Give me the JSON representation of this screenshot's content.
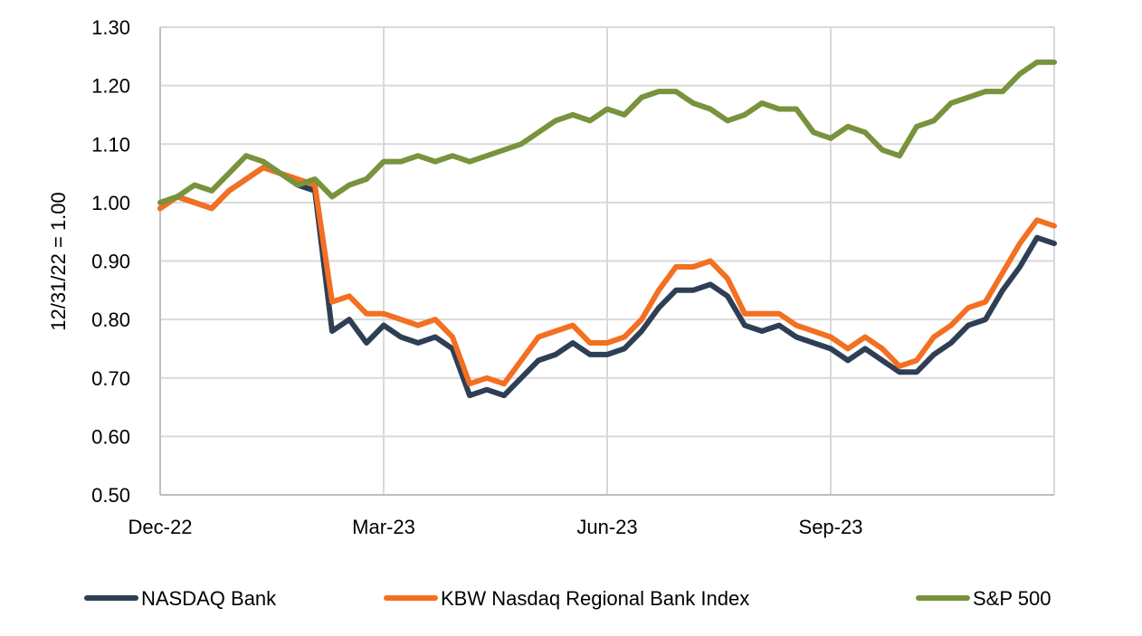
{
  "chart_data": {
    "type": "line",
    "title": "",
    "xlabel": "",
    "ylabel": "12/31/22 = 1.00",
    "ylim": [
      0.5,
      1.3
    ],
    "yticks": [
      "0.50",
      "0.60",
      "0.70",
      "0.80",
      "0.90",
      "1.00",
      "1.10",
      "1.20",
      "1.30"
    ],
    "xlim": [
      "2022-12-30",
      "2023-12-29"
    ],
    "xticks": [
      {
        "label": "Dec-22",
        "date": "2022-12-30"
      },
      {
        "label": "Mar-23",
        "date": "2023-03-31"
      },
      {
        "label": "Jun-23",
        "date": "2023-06-30"
      },
      {
        "label": "Sep-23",
        "date": "2023-09-29"
      }
    ],
    "grid": "vertical and horizontal",
    "legend_position": "bottom",
    "x": [
      "2022-12-30",
      "2023-01-06",
      "2023-01-13",
      "2023-01-20",
      "2023-01-27",
      "2023-02-03",
      "2023-02-10",
      "2023-02-17",
      "2023-02-24",
      "2023-03-03",
      "2023-03-10",
      "2023-03-17",
      "2023-03-24",
      "2023-03-31",
      "2023-04-07",
      "2023-04-14",
      "2023-04-21",
      "2023-04-28",
      "2023-05-05",
      "2023-05-12",
      "2023-05-19",
      "2023-05-26",
      "2023-06-02",
      "2023-06-09",
      "2023-06-16",
      "2023-06-23",
      "2023-06-30",
      "2023-07-07",
      "2023-07-14",
      "2023-07-21",
      "2023-07-28",
      "2023-08-04",
      "2023-08-11",
      "2023-08-18",
      "2023-08-25",
      "2023-09-01",
      "2023-09-08",
      "2023-09-15",
      "2023-09-22",
      "2023-09-29",
      "2023-10-06",
      "2023-10-13",
      "2023-10-20",
      "2023-10-27",
      "2023-11-03",
      "2023-11-10",
      "2023-11-17",
      "2023-11-24",
      "2023-12-01",
      "2023-12-08",
      "2023-12-15",
      "2023-12-22",
      "2023-12-29"
    ],
    "series": [
      {
        "name": "NASDAQ Bank",
        "color": "#2e3f55",
        "values": [
          0.99,
          1.01,
          1.0,
          0.99,
          1.02,
          1.04,
          1.06,
          1.05,
          1.03,
          1.02,
          0.78,
          0.8,
          0.76,
          0.79,
          0.77,
          0.76,
          0.77,
          0.75,
          0.67,
          0.68,
          0.67,
          0.7,
          0.73,
          0.74,
          0.76,
          0.74,
          0.74,
          0.75,
          0.78,
          0.82,
          0.85,
          0.85,
          0.86,
          0.84,
          0.79,
          0.78,
          0.79,
          0.77,
          0.76,
          0.75,
          0.73,
          0.75,
          0.73,
          0.71,
          0.71,
          0.74,
          0.76,
          0.79,
          0.8,
          0.85,
          0.89,
          0.94,
          0.93
        ]
      },
      {
        "name": "KBW Nasdaq Regional Bank Index",
        "color": "#f36f21",
        "values": [
          0.99,
          1.01,
          1.0,
          0.99,
          1.02,
          1.04,
          1.06,
          1.05,
          1.04,
          1.03,
          0.83,
          0.84,
          0.81,
          0.81,
          0.8,
          0.79,
          0.8,
          0.77,
          0.69,
          0.7,
          0.69,
          0.73,
          0.77,
          0.78,
          0.79,
          0.76,
          0.76,
          0.77,
          0.8,
          0.85,
          0.89,
          0.89,
          0.9,
          0.87,
          0.81,
          0.81,
          0.81,
          0.79,
          0.78,
          0.77,
          0.75,
          0.77,
          0.75,
          0.72,
          0.73,
          0.77,
          0.79,
          0.82,
          0.83,
          0.88,
          0.93,
          0.97,
          0.96
        ]
      },
      {
        "name": "S&P 500",
        "color": "#77933c",
        "values": [
          1.0,
          1.01,
          1.03,
          1.02,
          1.05,
          1.08,
          1.07,
          1.05,
          1.03,
          1.04,
          1.01,
          1.03,
          1.04,
          1.07,
          1.07,
          1.08,
          1.07,
          1.08,
          1.07,
          1.08,
          1.09,
          1.1,
          1.12,
          1.14,
          1.15,
          1.14,
          1.16,
          1.15,
          1.18,
          1.19,
          1.19,
          1.17,
          1.16,
          1.14,
          1.15,
          1.17,
          1.16,
          1.16,
          1.12,
          1.11,
          1.13,
          1.12,
          1.09,
          1.08,
          1.13,
          1.14,
          1.17,
          1.18,
          1.19,
          1.19,
          1.22,
          1.24,
          1.24
        ]
      }
    ]
  }
}
